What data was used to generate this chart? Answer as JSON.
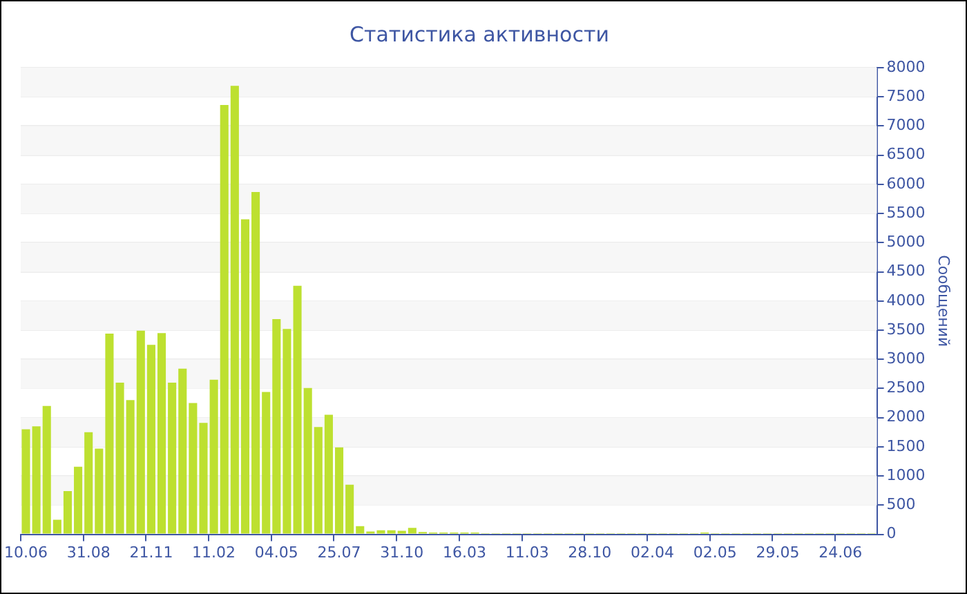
{
  "chart_data": {
    "type": "bar",
    "title": "Статистика активности",
    "ylabel": "Сообщений",
    "categories": [
      "10.06",
      null,
      null,
      null,
      null,
      null,
      "31.08",
      null,
      null,
      null,
      null,
      null,
      "21.11",
      null,
      null,
      null,
      null,
      null,
      "11.02",
      null,
      null,
      null,
      null,
      null,
      "04.05",
      null,
      null,
      null,
      null,
      null,
      "25.07",
      null,
      null,
      null,
      null,
      null,
      "31.10",
      null,
      null,
      null,
      null,
      null,
      "16.03",
      null,
      null,
      null,
      null,
      null,
      "11.03",
      null,
      null,
      null,
      null,
      null,
      "28.10",
      null,
      null,
      null,
      null,
      null,
      "02.04",
      null,
      null,
      null,
      null,
      null,
      "02.05",
      null,
      null,
      null,
      null,
      null,
      "29.05",
      null,
      null,
      null,
      null,
      null,
      "24.06",
      null,
      null,
      null
    ],
    "values": [
      1800,
      1850,
      2200,
      250,
      740,
      1160,
      1750,
      1470,
      3440,
      2600,
      2300,
      3490,
      3250,
      3450,
      2600,
      2840,
      2250,
      1910,
      2650,
      7360,
      7690,
      5400,
      5870,
      2440,
      3690,
      3520,
      4260,
      2510,
      1840,
      2050,
      1490,
      850,
      140,
      50,
      70,
      70,
      60,
      110,
      40,
      30,
      30,
      30,
      30,
      30,
      20,
      20,
      20,
      20,
      20,
      20,
      20,
      20,
      20,
      20,
      20,
      20,
      20,
      20,
      20,
      20,
      20,
      20,
      20,
      20,
      20,
      30,
      20,
      20,
      20,
      20,
      20,
      20,
      20,
      20,
      20,
      20,
      20,
      20,
      20,
      20,
      20,
      20
    ],
    "color": "#bde030",
    "ylim": [
      0,
      8000
    ],
    "yticks": [
      0,
      500,
      1000,
      1500,
      2000,
      2500,
      3000,
      3500,
      4000,
      4500,
      5000,
      5500,
      6000,
      6500,
      7000,
      7500,
      8000
    ],
    "grid": "y",
    "legend": false
  }
}
